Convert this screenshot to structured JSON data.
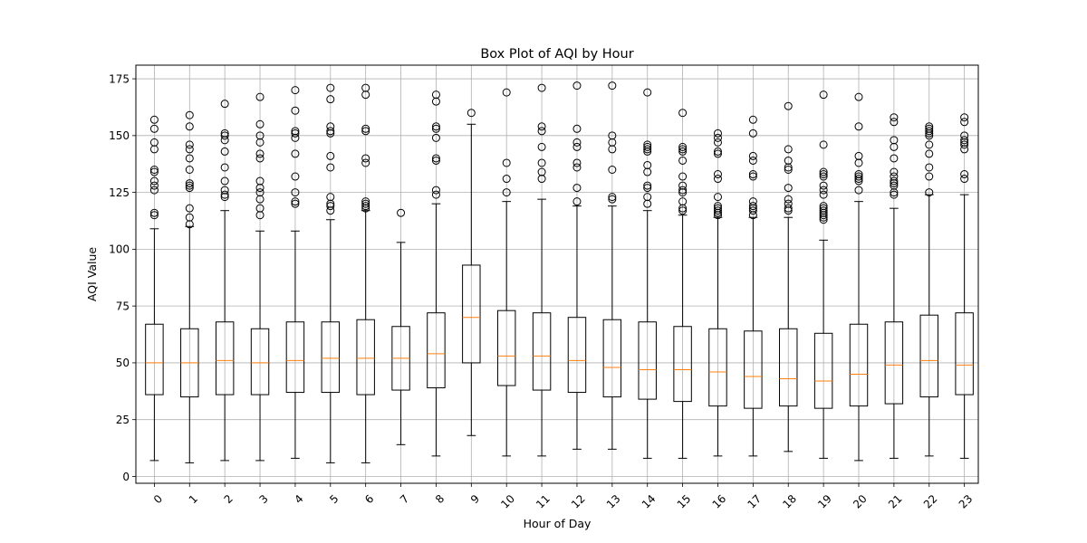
{
  "chart_data": {
    "type": "box",
    "title": "Box Plot of AQI by Hour",
    "xlabel": "Hour of Day",
    "ylabel": "AQI Value",
    "ylim": [
      -3,
      181
    ],
    "yticks": [
      0,
      25,
      50,
      75,
      100,
      125,
      150,
      175
    ],
    "grid": true,
    "colors": {
      "box": "#000000",
      "median": "#ff7f0e",
      "grid": "#b0b0b0",
      "flier": "#000000"
    },
    "categories": [
      "0",
      "1",
      "2",
      "3",
      "4",
      "5",
      "6",
      "7",
      "8",
      "9",
      "10",
      "11",
      "12",
      "13",
      "14",
      "15",
      "16",
      "17",
      "18",
      "19",
      "20",
      "21",
      "22",
      "23"
    ],
    "boxes": [
      {
        "q1": 36,
        "median": 50,
        "q3": 67,
        "whislo": 7,
        "whishi": 109,
        "fliers": [
          115,
          116,
          126,
          128,
          130,
          134,
          135,
          144,
          147,
          153,
          157
        ]
      },
      {
        "q1": 35,
        "median": 50,
        "q3": 65,
        "whislo": 6,
        "whishi": 110,
        "fliers": [
          111,
          114,
          118,
          127,
          128,
          129,
          135,
          140,
          144,
          146,
          154,
          159
        ]
      },
      {
        "q1": 36,
        "median": 51,
        "q3": 68,
        "whislo": 7,
        "whishi": 117,
        "fliers": [
          123,
          124,
          126,
          130,
          136,
          143,
          148,
          150,
          151,
          164
        ]
      },
      {
        "q1": 36,
        "median": 50,
        "q3": 65,
        "whislo": 7,
        "whishi": 108,
        "fliers": [
          115,
          118,
          122,
          125,
          127,
          130,
          140,
          142,
          147,
          150,
          155,
          167
        ]
      },
      {
        "q1": 37,
        "median": 51,
        "q3": 68,
        "whislo": 8,
        "whishi": 108,
        "fliers": [
          120,
          121,
          125,
          132,
          142,
          149,
          151,
          152,
          161,
          170
        ]
      },
      {
        "q1": 37,
        "median": 52,
        "q3": 68,
        "whislo": 6,
        "whishi": 113,
        "fliers": [
          117,
          119,
          120,
          123,
          136,
          141,
          151,
          152,
          154,
          166,
          171
        ]
      },
      {
        "q1": 36,
        "median": 52,
        "q3": 69,
        "whislo": 6,
        "whishi": 117,
        "fliers": [
          118,
          119,
          120,
          121,
          138,
          140,
          152,
          153,
          168,
          171
        ]
      },
      {
        "q1": 38,
        "median": 52,
        "q3": 66,
        "whislo": 14,
        "whishi": 103,
        "fliers": [
          116
        ]
      },
      {
        "q1": 39,
        "median": 54,
        "q3": 72,
        "whislo": 9,
        "whishi": 120,
        "fliers": [
          124,
          126,
          139,
          140,
          149,
          153,
          154,
          165,
          168
        ]
      },
      {
        "q1": 50,
        "median": 70,
        "q3": 93,
        "whislo": 18,
        "whishi": 155,
        "fliers": [
          160
        ]
      },
      {
        "q1": 40,
        "median": 53,
        "q3": 73,
        "whislo": 9,
        "whishi": 121,
        "fliers": [
          125,
          131,
          138,
          169
        ]
      },
      {
        "q1": 38,
        "median": 53,
        "q3": 72,
        "whislo": 9,
        "whishi": 122,
        "fliers": [
          131,
          134,
          138,
          145,
          152,
          154,
          171
        ]
      },
      {
        "q1": 37,
        "median": 51,
        "q3": 70,
        "whislo": 12,
        "whishi": 119,
        "fliers": [
          121,
          127,
          136,
          138,
          145,
          147,
          153,
          172
        ]
      },
      {
        "q1": 35,
        "median": 48,
        "q3": 69,
        "whislo": 12,
        "whishi": 119,
        "fliers": [
          122,
          123,
          135,
          144,
          147,
          150,
          172
        ]
      },
      {
        "q1": 34,
        "median": 47,
        "q3": 68,
        "whislo": 8,
        "whishi": 117,
        "fliers": [
          120,
          123,
          127,
          128,
          134,
          137,
          143,
          144,
          145,
          146,
          169
        ]
      },
      {
        "q1": 33,
        "median": 47,
        "q3": 66,
        "whislo": 8,
        "whishi": 115,
        "fliers": [
          117,
          118,
          121,
          125,
          126,
          128,
          132,
          139,
          143,
          144,
          145,
          160
        ]
      },
      {
        "q1": 31,
        "median": 46,
        "q3": 65,
        "whislo": 9,
        "whishi": 114,
        "fliers": [
          115,
          116,
          117,
          118,
          119,
          123,
          131,
          133,
          142,
          143,
          147,
          149,
          151
        ]
      },
      {
        "q1": 30,
        "median": 44,
        "q3": 64,
        "whislo": 9,
        "whishi": 114,
        "fliers": [
          115,
          117,
          118,
          119,
          121,
          132,
          133,
          139,
          141,
          151,
          157
        ]
      },
      {
        "q1": 31,
        "median": 43,
        "q3": 65,
        "whislo": 11,
        "whishi": 114,
        "fliers": [
          117,
          118,
          120,
          122,
          127,
          135,
          136,
          139,
          144,
          163
        ]
      },
      {
        "q1": 30,
        "median": 42,
        "q3": 63,
        "whislo": 8,
        "whishi": 104,
        "fliers": [
          113,
          114,
          115,
          116,
          117,
          118,
          119,
          124,
          126,
          128,
          132,
          133,
          134,
          146,
          168
        ]
      },
      {
        "q1": 31,
        "median": 45,
        "q3": 67,
        "whislo": 7,
        "whishi": 121,
        "fliers": [
          126,
          130,
          131,
          132,
          133,
          138,
          141,
          154,
          167
        ]
      },
      {
        "q1": 32,
        "median": 49,
        "q3": 68,
        "whislo": 8,
        "whishi": 118,
        "fliers": [
          124,
          125,
          128,
          129,
          130,
          132,
          134,
          140,
          145,
          148,
          156,
          158
        ]
      },
      {
        "q1": 35,
        "median": 51,
        "q3": 71,
        "whislo": 9,
        "whishi": 124,
        "fliers": [
          125,
          132,
          136,
          142,
          146,
          150,
          151,
          152,
          153,
          154
        ]
      },
      {
        "q1": 36,
        "median": 49,
        "q3": 72,
        "whislo": 8,
        "whishi": 124,
        "fliers": [
          131,
          133,
          144,
          146,
          147,
          148,
          150,
          156,
          158
        ]
      }
    ]
  }
}
